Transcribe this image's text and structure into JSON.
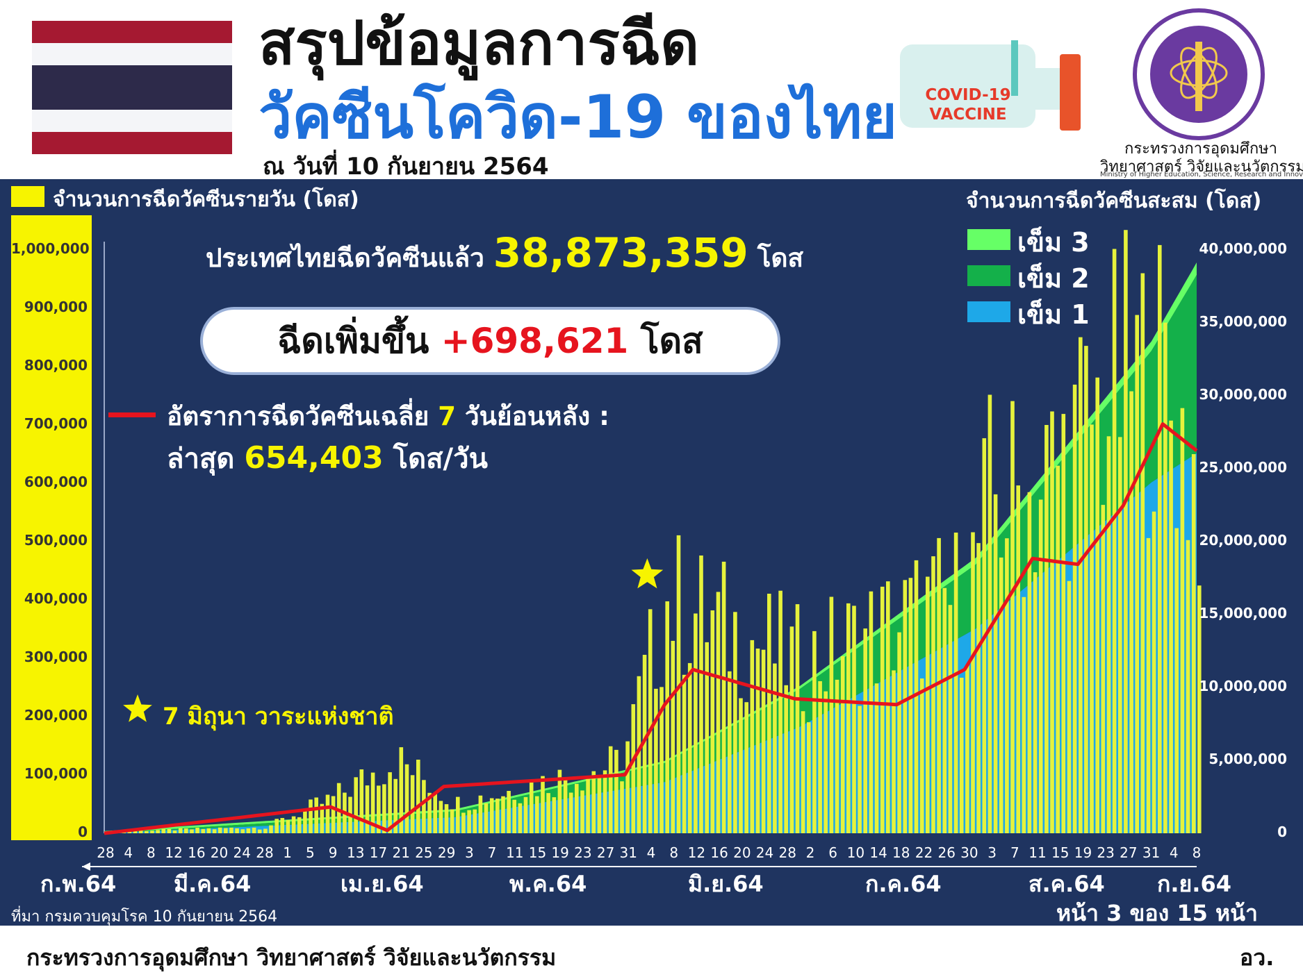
{
  "header": {
    "title_line1": "สรุปข้อมูลการฉีด",
    "title_line2": "วัคซีนโควิด-19 ของไทย",
    "date": "ณ วันที่ 10 กันยายน 2564",
    "vaccine_text": "COVID-19 VACCINE",
    "ministry_name": "กระทรวงการอุดมศึกษา",
    "ministry_name2": "วิทยาศาสตร์ วิจัยและนวัตกรรม",
    "ministry_en": "Ministry of Higher Education, Science, Research and Innovation",
    "flag_colors": [
      "#a51931",
      "#f4f5f8",
      "#2d2a4a",
      "#f4f5f8",
      "#a51931"
    ]
  },
  "summary": {
    "total_prefix": "ประเทศไทยฉีดวัคซีนแล้ว",
    "total_value": "38,873,359",
    "total_unit": "โดส",
    "increase_prefix": "ฉีดเพิ่มขึ้น",
    "increase_value": "+698,621",
    "increase_unit": "โดส",
    "avg_label_a": "อัตราการฉีดวัคซีนเฉลี่ย",
    "avg_days": "7",
    "avg_label_b": "วันย้อนหลัง :",
    "latest_label": "ล่าสุด",
    "latest_value": "654,403",
    "latest_unit": "โดส/วัน",
    "star_note": "7 มิถุนา วาระแห่งชาติ"
  },
  "chart_data": {
    "type": "bar",
    "left_axis_label": "จำนวนการฉีดวัคซีนรายวัน (โดส)",
    "right_axis_label": "จำนวนการฉีดวัคซีนสะสม (โดส)",
    "left_ticks": [
      "1,000,000",
      "900,000",
      "800,000",
      "700,000",
      "600,000",
      "500,000",
      "400,000",
      "300,000",
      "200,000",
      "100,000",
      "0"
    ],
    "right_ticks": [
      "40,000,000",
      "35,000,000",
      "30,000,000",
      "25,000,000",
      "20,000,000",
      "15,000,000",
      "10,000,000",
      "5,000,000",
      "0"
    ],
    "ylim_left": [
      0,
      1000000
    ],
    "ylim_right": [
      0,
      40000000
    ],
    "legend": [
      {
        "name": "เข็ม 3",
        "color": "#66ff66"
      },
      {
        "name": "เข็ม 2",
        "color": "#14b04a"
      },
      {
        "name": "เข็ม 1",
        "color": "#1ea8e8"
      }
    ],
    "colors": {
      "daily_bar": "#e6f23c",
      "avg_line": "#e6141e",
      "dose1": "#1ea8e8",
      "dose2": "#14b04a",
      "dose3": "#66ff66"
    },
    "x_tick_labels": [
      "28",
      "4",
      "8",
      "12",
      "16",
      "20",
      "24",
      "28",
      "1",
      "5",
      "9",
      "13",
      "17",
      "21",
      "25",
      "29",
      "3",
      "7",
      "11",
      "15",
      "19",
      "23",
      "27",
      "31",
      "4",
      "8",
      "12",
      "16",
      "20",
      "24",
      "28",
      "2",
      "6",
      "10",
      "14",
      "18",
      "22",
      "26",
      "30",
      "3",
      "7",
      "11",
      "15",
      "19",
      "23",
      "27",
      "31",
      "4",
      "8"
    ],
    "months": [
      "ก.พ.64",
      "มี.ค.64",
      "เม.ย.64",
      "พ.ค.64",
      "มิ.ย.64",
      "ก.ค.64",
      "ส.ค.64",
      "ก.ย.64"
    ],
    "daily_doses_sampled": [
      {
        "date": "28 ก.พ.",
        "value": 1000
      },
      {
        "date": "1 มี.ค.",
        "value": 4000
      },
      {
        "date": "28 มี.ค.",
        "value": 12000
      },
      {
        "date": "9 เม.ย.",
        "value": 70000
      },
      {
        "date": "20 เม.ย.",
        "value": 150000
      },
      {
        "date": "1 พ.ค.",
        "value": 60000
      },
      {
        "date": "30 พ.ค.",
        "value": 140000
      },
      {
        "date": "7 มิ.ย.",
        "value": 470000
      },
      {
        "date": "1 ก.ค.",
        "value": 340000
      },
      {
        "date": "30 ก.ค.",
        "value": 480000
      },
      {
        "date": "3 ส.ค.",
        "value": 670000
      },
      {
        "date": "11 ส.ค.",
        "value": 680000
      },
      {
        "date": "27 ส.ค.",
        "value": 910000
      },
      {
        "date": "2 ก.ย.",
        "value": 920000
      },
      {
        "date": "9 ก.ย.",
        "value": 698621
      }
    ],
    "avg7_sampled": [
      {
        "date": "28 ก.พ.",
        "value": 0
      },
      {
        "date": "9 เม.ย.",
        "value": 45000
      },
      {
        "date": "19 เม.ย.",
        "value": 5000
      },
      {
        "date": "29 เม.ย.",
        "value": 80000
      },
      {
        "date": "31 พ.ค.",
        "value": 100000
      },
      {
        "date": "7 มิ.ย.",
        "value": 220000
      },
      {
        "date": "12 มิ.ย.",
        "value": 280000
      },
      {
        "date": "30 มิ.ย.",
        "value": 230000
      },
      {
        "date": "18 ก.ค.",
        "value": 220000
      },
      {
        "date": "30 ก.ค.",
        "value": 280000
      },
      {
        "date": "11 ส.ค.",
        "value": 470000
      },
      {
        "date": "19 ส.ค.",
        "value": 460000
      },
      {
        "date": "27 ส.ค.",
        "value": 560000
      },
      {
        "date": "3 ก.ย.",
        "value": 700000
      },
      {
        "date": "9 ก.ย.",
        "value": 654403
      }
    ],
    "cumulative_sampled": [
      {
        "date": "28 ก.พ.",
        "dose1": 0,
        "dose2": 0,
        "dose3": 0
      },
      {
        "date": "1 พ.ค.",
        "dose1": 1100000,
        "dose2": 400000,
        "dose3": 0
      },
      {
        "date": "7 มิ.ย.",
        "dose1": 3500000,
        "dose2": 1300000,
        "dose3": 0
      },
      {
        "date": "1 ก.ค.",
        "dose1": 7300000,
        "dose2": 2600000,
        "dose3": 50000
      },
      {
        "date": "1 ส.ค.",
        "dose1": 14000000,
        "dose2": 4400000,
        "dose3": 300000
      },
      {
        "date": "1 ก.ย.",
        "dose1": 24000000,
        "dose2": 9000000,
        "dose3": 500000
      },
      {
        "date": "9 ก.ย.",
        "dose1": 26000000,
        "dose2": 12200000,
        "dose3": 700000
      }
    ]
  },
  "footer": {
    "source": "ที่มา กรมควบคุมโรค 10 กันยายน 2564",
    "page": "หน้า 3 ของ 15 หน้า",
    "ministry": "กระทรวงการอุดมศึกษา วิทยาศาสตร์ วิจัยและนวัตกรรม",
    "abbr": "อว."
  }
}
